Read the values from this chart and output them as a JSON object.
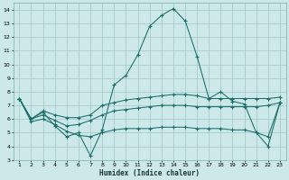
{
  "xlabel": "Humidex (Indice chaleur)",
  "bg_color": "#cce8e8",
  "grid_color": "#aacccc",
  "line_color": "#1a6e6a",
  "xlim": [
    0.5,
    23.5
  ],
  "ylim": [
    3,
    14.5
  ],
  "xticks": [
    1,
    2,
    3,
    4,
    5,
    6,
    7,
    8,
    9,
    10,
    11,
    12,
    13,
    14,
    15,
    16,
    17,
    18,
    19,
    20,
    21,
    22,
    23
  ],
  "yticks": [
    3,
    4,
    5,
    6,
    7,
    8,
    9,
    10,
    11,
    12,
    13,
    14
  ],
  "lines": [
    {
      "x": [
        1,
        2,
        3,
        4,
        5,
        6,
        7,
        8,
        9,
        10,
        11,
        12,
        13,
        14,
        15,
        16,
        17,
        18,
        19,
        20,
        21,
        22,
        23
      ],
      "y": [
        7.5,
        6.0,
        6.5,
        5.5,
        4.7,
        5.0,
        3.3,
        5.2,
        8.5,
        9.2,
        10.7,
        12.8,
        13.6,
        14.1,
        13.2,
        10.6,
        7.5,
        8.0,
        7.3,
        7.1,
        5.0,
        4.0,
        7.2
      ]
    },
    {
      "x": [
        1,
        2,
        3,
        4,
        5,
        6,
        7,
        8,
        9,
        10,
        11,
        12,
        13,
        14,
        15,
        16,
        17,
        18,
        19,
        20,
        21,
        22,
        23
      ],
      "y": [
        7.5,
        6.0,
        6.6,
        6.3,
        6.1,
        6.1,
        6.3,
        7.0,
        7.2,
        7.4,
        7.5,
        7.6,
        7.7,
        7.8,
        7.8,
        7.7,
        7.5,
        7.5,
        7.5,
        7.5,
        7.5,
        7.5,
        7.6
      ]
    },
    {
      "x": [
        1,
        2,
        3,
        4,
        5,
        6,
        7,
        8,
        9,
        10,
        11,
        12,
        13,
        14,
        15,
        16,
        17,
        18,
        19,
        20,
        21,
        22,
        23
      ],
      "y": [
        7.5,
        6.0,
        6.3,
        5.9,
        5.5,
        5.6,
        5.9,
        6.3,
        6.6,
        6.7,
        6.8,
        6.9,
        7.0,
        7.0,
        7.0,
        6.9,
        6.9,
        6.9,
        6.9,
        6.9,
        6.9,
        7.0,
        7.2
      ]
    },
    {
      "x": [
        1,
        2,
        3,
        4,
        5,
        6,
        7,
        8,
        9,
        10,
        11,
        12,
        13,
        14,
        15,
        16,
        17,
        18,
        19,
        20,
        21,
        22,
        23
      ],
      "y": [
        7.5,
        5.8,
        6.0,
        5.6,
        5.1,
        4.8,
        4.7,
        5.0,
        5.2,
        5.3,
        5.3,
        5.3,
        5.4,
        5.4,
        5.4,
        5.3,
        5.3,
        5.3,
        5.2,
        5.2,
        5.0,
        4.7,
        7.2
      ]
    }
  ]
}
